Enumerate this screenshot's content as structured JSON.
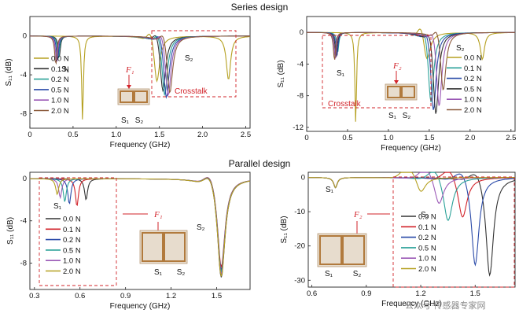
{
  "figure": {
    "section_top": "Series design",
    "section_bottom": "Parallel design",
    "watermark": "公众号·传感器专家网",
    "colors": [
      "#b5a020",
      "#333333",
      "#2a4aa8",
      "#2aa198",
      "#9b59b6",
      "#8b5a3c"
    ]
  },
  "chart_data": [
    {
      "type": "line",
      "title": "Series design (F1)",
      "xlabel": "Frequency (GHz)",
      "ylabel": "S₁₁ (dB)",
      "xlim": [
        0,
        2.55
      ],
      "ylim": [
        -9.5,
        2
      ],
      "xticks": [
        "0",
        "0.5",
        "1.0",
        "1.5",
        "2.0",
        "2.5"
      ],
      "yticks": [
        "0",
        "-4",
        "-8"
      ],
      "legend_position": "left",
      "force_label": "F₁",
      "annotations": {
        "s1": "S₁",
        "s2": "S₂",
        "s1_inset": "S₁",
        "s2_inset": "S₂",
        "crosstalk": "Crosstalk"
      },
      "series": [
        {
          "name": "0.0 N",
          "color": "#b5a020",
          "dips": [
            [
              0.61,
              -8.8,
              0.012
            ],
            [
              1.47,
              -4.8,
              0.04
            ],
            [
              2.3,
              -4.5,
              0.03
            ]
          ]
        },
        {
          "name": "0.1 N",
          "color": "#333333",
          "dips": [
            [
              0.34,
              -2.2,
              0.015
            ],
            [
              1.54,
              -5.8,
              0.04
            ]
          ]
        },
        {
          "name": "0.2 N",
          "color": "#2aa198",
          "dips": [
            [
              0.33,
              -2.4,
              0.015
            ],
            [
              1.56,
              -6.2,
              0.04
            ]
          ]
        },
        {
          "name": "0.5 N",
          "color": "#2a4aa8",
          "dips": [
            [
              0.32,
              -2.6,
              0.015
            ],
            [
              1.58,
              -6.5,
              0.04
            ]
          ]
        },
        {
          "name": "1.0 N",
          "color": "#9b59b6",
          "dips": [
            [
              0.31,
              -2.8,
              0.015
            ],
            [
              1.6,
              -6.3,
              0.04
            ]
          ]
        },
        {
          "name": "2.0 N",
          "color": "#8b5a3c",
          "dips": [
            [
              0.3,
              -3,
              0.015
            ],
            [
              1.62,
              -6,
              0.04
            ]
          ]
        }
      ]
    },
    {
      "type": "line",
      "title": "Series design (F2)",
      "xlabel": "Frequency (GHz)",
      "ylabel": "S₁₁ (dB)",
      "xlim": [
        0,
        2.55
      ],
      "ylim": [
        -12.5,
        2
      ],
      "xticks": [
        "0",
        "0.5",
        "1.0",
        "1.5",
        "2.0",
        "2.5"
      ],
      "yticks": [
        "0",
        "-4",
        "-8",
        "-12"
      ],
      "legend_position": "right",
      "force_label": "F₂",
      "annotations": {
        "s1": "S₁",
        "s2": "S₂",
        "s1_inset": "S₁",
        "s2_inset": "S₂",
        "crosstalk": "Crosstalk"
      },
      "series": [
        {
          "name": "0.0 N",
          "color": "#b5a020",
          "dips": [
            [
              0.6,
              -11.5,
              0.012
            ],
            [
              1.47,
              -3.5,
              0.05
            ],
            [
              2.15,
              -3.4,
              0.03
            ]
          ]
        },
        {
          "name": "0.1 N",
          "color": "#2aa198",
          "dips": [
            [
              0.38,
              -2.5,
              0.015
            ],
            [
              1.52,
              -9,
              0.04
            ]
          ]
        },
        {
          "name": "0.2 N",
          "color": "#2a4aa8",
          "dips": [
            [
              0.37,
              -3,
              0.015
            ],
            [
              1.55,
              -10,
              0.04
            ]
          ]
        },
        {
          "name": "0.5 N",
          "color": "#333333",
          "dips": [
            [
              0.36,
              -3.2,
              0.015
            ],
            [
              1.58,
              -10.5,
              0.04
            ]
          ]
        },
        {
          "name": "1.0 N",
          "color": "#9b59b6",
          "dips": [
            [
              0.35,
              -3.4,
              0.015
            ],
            [
              1.62,
              -9.5,
              0.04
            ]
          ]
        },
        {
          "name": "2.0 N",
          "color": "#8b5a3c",
          "dips": [
            [
              0.34,
              -3.6,
              0.015
            ],
            [
              1.67,
              -7.5,
              0.04
            ]
          ]
        }
      ]
    },
    {
      "type": "line",
      "title": "Parallel design (F1)",
      "xlabel": "Frequency (GHz)",
      "ylabel": "S₁₁ (dB)",
      "xlim": [
        0.27,
        1.72
      ],
      "ylim": [
        -10.5,
        0.6
      ],
      "xticks": [
        "0.3",
        "0.6",
        "0.9",
        "1.2",
        "1.5"
      ],
      "yticks": [
        "0",
        "-4",
        "-8"
      ],
      "legend_position": "left",
      "force_label": "F₁",
      "annotations": {
        "s1": "S₁",
        "s2": "S₂",
        "s1_inset": "S₁",
        "s2_inset": "S₂"
      },
      "series": [
        {
          "name": "0.0 N",
          "color": "#333333",
          "dips": [
            [
              0.64,
              -2,
              0.012
            ],
            [
              1.53,
              -9.5,
              0.03
            ]
          ]
        },
        {
          "name": "0.1 N",
          "color": "#d2232a",
          "dips": [
            [
              0.58,
              -2.6,
              0.012
            ],
            [
              1.53,
              -8.5,
              0.03
            ]
          ]
        },
        {
          "name": "0.2 N",
          "color": "#2a4aa8",
          "dips": [
            [
              0.53,
              -2.4,
              0.012
            ],
            [
              1.53,
              -8.8,
              0.03
            ]
          ]
        },
        {
          "name": "0.5 N",
          "color": "#2aa198",
          "dips": [
            [
              0.5,
              -2.2,
              0.012
            ],
            [
              1.53,
              -9,
              0.03
            ]
          ]
        },
        {
          "name": "1.0 N",
          "color": "#9b59b6",
          "dips": [
            [
              0.47,
              -1.8,
              0.012
            ],
            [
              1.53,
              -9.2,
              0.03
            ]
          ]
        },
        {
          "name": "2.0 N",
          "color": "#b5a020",
          "dips": [
            [
              0.45,
              -1.5,
              0.012
            ],
            [
              1.53,
              -9.4,
              0.03
            ]
          ]
        }
      ]
    },
    {
      "type": "line",
      "title": "Parallel design (F2)",
      "xlabel": "Frequency (GHz)",
      "ylabel": "S₁₁ (dB)",
      "xlim": [
        0.58,
        1.72
      ],
      "ylim": [
        -32,
        1.5
      ],
      "xticks": [
        "0.6",
        "0.9",
        "1.2",
        "1.5"
      ],
      "yticks": [
        "0",
        "-10",
        "-20",
        "-30"
      ],
      "legend_position": "left",
      "force_label": "F₂",
      "annotations": {
        "s1": "S₁",
        "s2": "S₂",
        "s1_inset": "S₁",
        "s2_inset": "S₂"
      },
      "series": [
        {
          "name": "0.0 N",
          "color": "#333333",
          "dips": [
            [
              0.73,
              -3,
              0.012
            ],
            [
              1.58,
              -29,
              0.025
            ]
          ]
        },
        {
          "name": "0.1 N",
          "color": "#d2232a",
          "dips": [
            [
              0.73,
              -3,
              0.012
            ],
            [
              1.43,
              -12,
              0.03
            ]
          ]
        },
        {
          "name": "0.2 N",
          "color": "#2a4aa8",
          "dips": [
            [
              0.73,
              -3,
              0.012
            ],
            [
              1.5,
              -26,
              0.025
            ]
          ]
        },
        {
          "name": "0.5 N",
          "color": "#2aa198",
          "dips": [
            [
              0.73,
              -3,
              0.012
            ],
            [
              1.35,
              -13,
              0.03
            ]
          ]
        },
        {
          "name": "1.0 N",
          "color": "#9b59b6",
          "dips": [
            [
              0.73,
              -3,
              0.012
            ],
            [
              1.3,
              -8,
              0.03
            ]
          ]
        },
        {
          "name": "2.0 N",
          "color": "#b5a020",
          "dips": [
            [
              0.73,
              -3,
              0.012
            ],
            [
              1.2,
              -4.5,
              0.03
            ]
          ]
        }
      ]
    }
  ]
}
